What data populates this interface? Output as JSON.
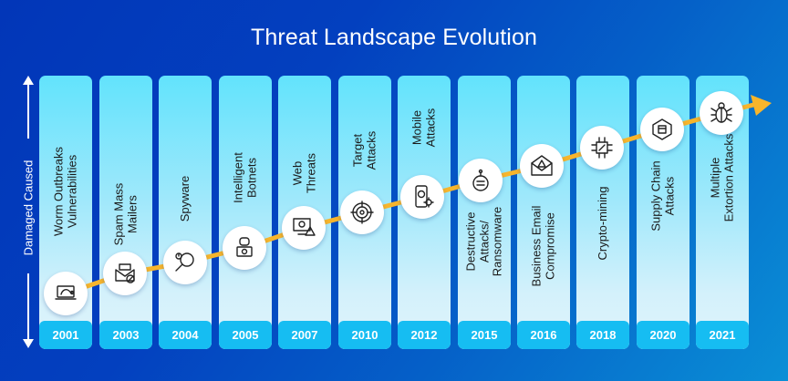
{
  "title": "Threat Landscape Evolution",
  "y_axis_label": "Damaged Caused",
  "colors": {
    "background_start": "#0236b8",
    "background_end": "#0a8fd6",
    "column_top": "#62e3fc",
    "column_bottom": "#dff3fb",
    "year_box": "#16bdf2",
    "trend_line": "#f7b52c",
    "text_dark": "#1a1a1a",
    "text_light": "#ffffff"
  },
  "timeline": [
    {
      "year": "2001",
      "label_lines": [
        "Worm Outbreaks",
        "Vulnerabilities"
      ],
      "icon": "laptop-worm-icon"
    },
    {
      "year": "2003",
      "label_lines": [
        "Spam Mass",
        "Mailers"
      ],
      "icon": "spam-mail-icon"
    },
    {
      "year": "2004",
      "label_lines": [
        "Spyware"
      ],
      "icon": "magnifier-spy-icon"
    },
    {
      "year": "2005",
      "label_lines": [
        "Intelligent",
        "Botnets"
      ],
      "icon": "robot-laptop-icon"
    },
    {
      "year": "2007",
      "label_lines": [
        "Web",
        "Threats"
      ],
      "icon": "monitor-warning-icon"
    },
    {
      "year": "2010",
      "label_lines": [
        "Target",
        "Attacks"
      ],
      "icon": "target-bug-icon"
    },
    {
      "year": "2012",
      "label_lines": [
        "Mobile",
        "Attacks"
      ],
      "icon": "phone-skull-icon"
    },
    {
      "year": "2015",
      "label_lines": [
        "Destructive",
        "Attacks/",
        "Ransomware"
      ],
      "icon": "binary-bomb-icon"
    },
    {
      "year": "2016",
      "label_lines": [
        "Business Email",
        "Compromise"
      ],
      "icon": "email-warning-icon"
    },
    {
      "year": "2018",
      "label_lines": [
        "Crypto-mining"
      ],
      "icon": "chip-pickaxe-icon"
    },
    {
      "year": "2020",
      "label_lines": [
        "Supply Chain",
        "Attacks"
      ],
      "icon": "network-box-icon"
    },
    {
      "year": "2021",
      "label_lines": [
        "Multiple",
        "Extortion Attacks"
      ],
      "icon": "bug-icon"
    }
  ]
}
